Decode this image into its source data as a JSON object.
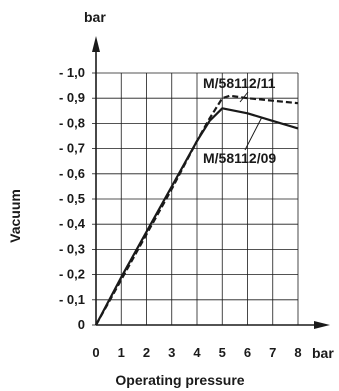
{
  "chart_data": {
    "type": "line",
    "xlabel": "Operating pressure",
    "ylabel": "Vacuum",
    "x_unit": "bar",
    "y_unit": "bar",
    "xlim": [
      0,
      8
    ],
    "ylim": [
      0,
      -1.0
    ],
    "x_ticks": [
      "0",
      "1",
      "2",
      "3",
      "4",
      "5",
      "6",
      "7",
      "8"
    ],
    "y_ticks": [
      "0",
      "- 0,1",
      "- 0,2",
      "- 0,3",
      "- 0,4",
      "- 0,5",
      "- 0,6",
      "- 0,7",
      "- 0,8",
      "- 0,9",
      "- 1,0"
    ],
    "grid": true,
    "series": [
      {
        "name": "M/58112/11",
        "style": "dashed",
        "color": "#1a1a1a",
        "points": [
          [
            0,
            0
          ],
          [
            1,
            -0.18
          ],
          [
            2,
            -0.36
          ],
          [
            3,
            -0.54
          ],
          [
            4,
            -0.73
          ],
          [
            4.5,
            -0.82
          ],
          [
            5,
            -0.9
          ],
          [
            5.3,
            -0.91
          ],
          [
            6,
            -0.9
          ],
          [
            7,
            -0.89
          ],
          [
            8,
            -0.88
          ]
        ]
      },
      {
        "name": "M/58112/09",
        "style": "solid",
        "color": "#1a1a1a",
        "points": [
          [
            0,
            0
          ],
          [
            1,
            -0.19
          ],
          [
            2,
            -0.37
          ],
          [
            3,
            -0.55
          ],
          [
            4,
            -0.73
          ],
          [
            4.5,
            -0.81
          ],
          [
            5,
            -0.86
          ],
          [
            6,
            -0.84
          ],
          [
            7,
            -0.81
          ],
          [
            8,
            -0.78
          ]
        ]
      }
    ]
  }
}
